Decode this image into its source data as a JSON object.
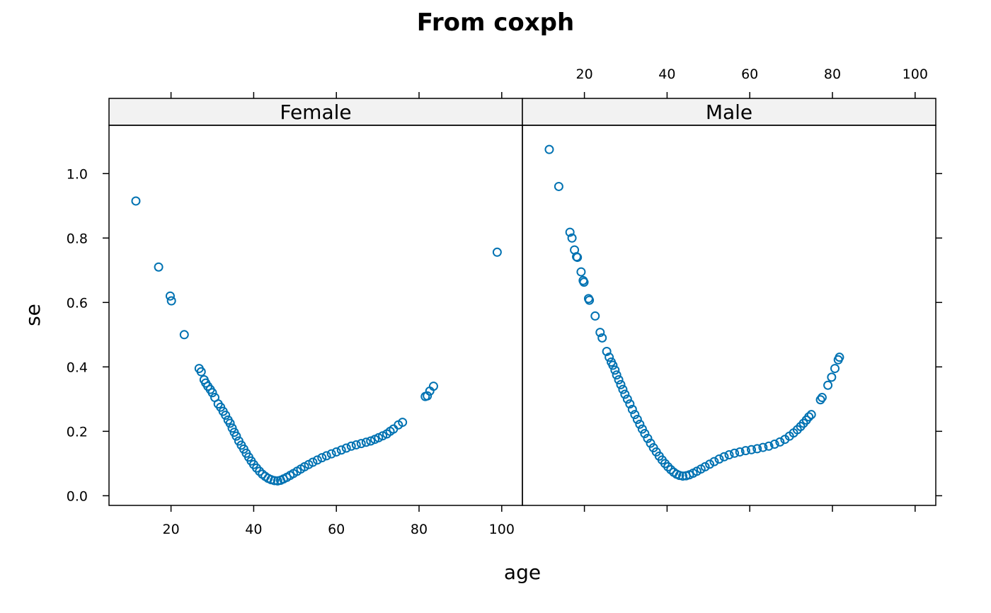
{
  "chart_data": {
    "type": "scatter",
    "title": "From coxph",
    "xlabel": "age",
    "ylabel": "se",
    "xlim": [
      5,
      105
    ],
    "ylim": [
      -0.03,
      1.15
    ],
    "xticks": [
      20,
      40,
      60,
      80,
      100
    ],
    "yticks": [
      0.0,
      0.2,
      0.4,
      0.6,
      0.8,
      1.0
    ],
    "ytick_labels": [
      "0.0",
      "0.2",
      "0.4",
      "0.6",
      "0.8",
      "1.0"
    ],
    "grid": false,
    "point_color": "#0072B2",
    "strip_color": "#F2F2F2",
    "panels": [
      {
        "name": "Female",
        "points": [
          [
            11.5,
            0.915
          ],
          [
            17,
            0.71
          ],
          [
            19.8,
            0.62
          ],
          [
            20.1,
            0.605
          ],
          [
            23.2,
            0.5
          ],
          [
            26.8,
            0.395
          ],
          [
            27.3,
            0.385
          ],
          [
            28,
            0.36
          ],
          [
            28.4,
            0.35
          ],
          [
            28.9,
            0.34
          ],
          [
            29.5,
            0.33
          ],
          [
            30,
            0.32
          ],
          [
            30.6,
            0.305
          ],
          [
            31.4,
            0.285
          ],
          [
            32,
            0.275
          ],
          [
            32.6,
            0.262
          ],
          [
            33.2,
            0.25
          ],
          [
            33.8,
            0.235
          ],
          [
            34.3,
            0.225
          ],
          [
            34.8,
            0.21
          ],
          [
            35.3,
            0.197
          ],
          [
            35.8,
            0.185
          ],
          [
            36.4,
            0.17
          ],
          [
            37,
            0.157
          ],
          [
            37.6,
            0.145
          ],
          [
            38.2,
            0.132
          ],
          [
            38.8,
            0.12
          ],
          [
            39.4,
            0.108
          ],
          [
            40,
            0.097
          ],
          [
            40.7,
            0.086
          ],
          [
            41.4,
            0.076
          ],
          [
            42.1,
            0.067
          ],
          [
            42.8,
            0.06
          ],
          [
            43.5,
            0.054
          ],
          [
            44.2,
            0.05
          ],
          [
            45,
            0.047
          ],
          [
            45.8,
            0.046
          ],
          [
            46.5,
            0.048
          ],
          [
            47.2,
            0.052
          ],
          [
            48,
            0.057
          ],
          [
            48.8,
            0.063
          ],
          [
            49.6,
            0.069
          ],
          [
            50.5,
            0.076
          ],
          [
            51.4,
            0.083
          ],
          [
            52.3,
            0.09
          ],
          [
            53.3,
            0.097
          ],
          [
            54.3,
            0.104
          ],
          [
            55.4,
            0.111
          ],
          [
            56.5,
            0.118
          ],
          [
            57.6,
            0.124
          ],
          [
            58.8,
            0.13
          ],
          [
            60,
            0.136
          ],
          [
            61.2,
            0.142
          ],
          [
            62.4,
            0.148
          ],
          [
            63.6,
            0.154
          ],
          [
            64.8,
            0.158
          ],
          [
            66,
            0.162
          ],
          [
            67.2,
            0.166
          ],
          [
            68.3,
            0.17
          ],
          [
            69.3,
            0.175
          ],
          [
            70.2,
            0.18
          ],
          [
            71.2,
            0.186
          ],
          [
            72.2,
            0.192
          ],
          [
            73,
            0.2
          ],
          [
            73.8,
            0.207
          ],
          [
            75,
            0.22
          ],
          [
            76,
            0.228
          ],
          [
            81.5,
            0.308
          ],
          [
            82,
            0.31
          ],
          [
            82.6,
            0.325
          ],
          [
            83.5,
            0.34
          ],
          [
            98.9,
            0.756
          ]
        ]
      },
      {
        "name": "Male",
        "points": [
          [
            11.5,
            1.075
          ],
          [
            13.8,
            0.96
          ],
          [
            16.5,
            0.818
          ],
          [
            17,
            0.8
          ],
          [
            17.6,
            0.763
          ],
          [
            18.1,
            0.742
          ],
          [
            18.3,
            0.74
          ],
          [
            19.2,
            0.695
          ],
          [
            19.7,
            0.668
          ],
          [
            19.9,
            0.663
          ],
          [
            21,
            0.612
          ],
          [
            21.2,
            0.607
          ],
          [
            22.6,
            0.558
          ],
          [
            23.8,
            0.507
          ],
          [
            24.3,
            0.49
          ],
          [
            25.4,
            0.448
          ],
          [
            26,
            0.43
          ],
          [
            26.5,
            0.415
          ],
          [
            26.9,
            0.405
          ],
          [
            27.4,
            0.39
          ],
          [
            27.8,
            0.375
          ],
          [
            28.3,
            0.36
          ],
          [
            28.8,
            0.345
          ],
          [
            29.3,
            0.33
          ],
          [
            29.8,
            0.315
          ],
          [
            30.4,
            0.3
          ],
          [
            31,
            0.285
          ],
          [
            31.6,
            0.268
          ],
          [
            32.2,
            0.252
          ],
          [
            32.8,
            0.237
          ],
          [
            33.4,
            0.222
          ],
          [
            34,
            0.207
          ],
          [
            34.6,
            0.193
          ],
          [
            35.3,
            0.178
          ],
          [
            36,
            0.163
          ],
          [
            36.7,
            0.149
          ],
          [
            37.4,
            0.136
          ],
          [
            38.1,
            0.123
          ],
          [
            38.8,
            0.111
          ],
          [
            39.5,
            0.1
          ],
          [
            40.2,
            0.09
          ],
          [
            40.9,
            0.081
          ],
          [
            41.6,
            0.073
          ],
          [
            42.3,
            0.067
          ],
          [
            43,
            0.063
          ],
          [
            43.8,
            0.061
          ],
          [
            44.6,
            0.062
          ],
          [
            45.4,
            0.065
          ],
          [
            46.3,
            0.07
          ],
          [
            47.2,
            0.076
          ],
          [
            48.2,
            0.083
          ],
          [
            49.2,
            0.09
          ],
          [
            50.3,
            0.098
          ],
          [
            51.4,
            0.106
          ],
          [
            52.6,
            0.114
          ],
          [
            53.8,
            0.121
          ],
          [
            55,
            0.127
          ],
          [
            56.3,
            0.132
          ],
          [
            57.6,
            0.136
          ],
          [
            59,
            0.14
          ],
          [
            60.4,
            0.143
          ],
          [
            61.8,
            0.146
          ],
          [
            63.2,
            0.15
          ],
          [
            64.6,
            0.154
          ],
          [
            66,
            0.16
          ],
          [
            67.3,
            0.167
          ],
          [
            68.5,
            0.175
          ],
          [
            69.6,
            0.185
          ],
          [
            70.6,
            0.195
          ],
          [
            71.5,
            0.205
          ],
          [
            72.3,
            0.215
          ],
          [
            73,
            0.225
          ],
          [
            73.7,
            0.235
          ],
          [
            74.3,
            0.245
          ],
          [
            74.9,
            0.252
          ],
          [
            77.1,
            0.298
          ],
          [
            77.5,
            0.305
          ],
          [
            78.9,
            0.343
          ],
          [
            79.8,
            0.368
          ],
          [
            80.6,
            0.395
          ],
          [
            81.4,
            0.422
          ],
          [
            81.7,
            0.43
          ]
        ]
      }
    ]
  }
}
